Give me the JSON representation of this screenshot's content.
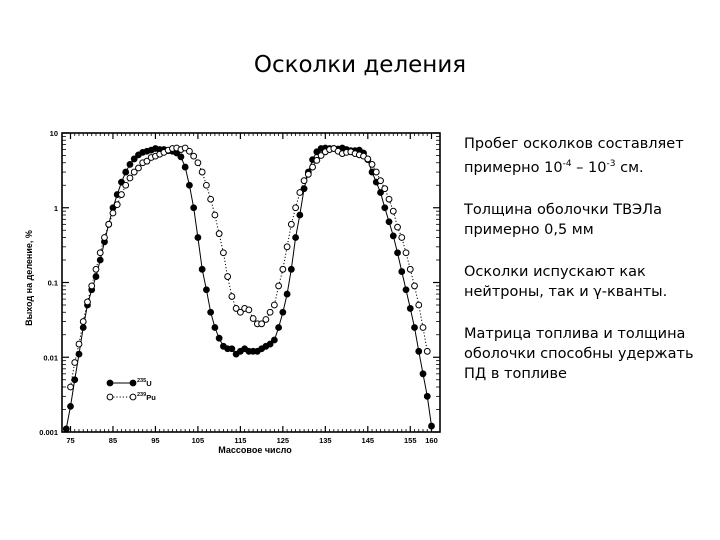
{
  "slide": {
    "title": "Осколки деления",
    "bullets": [
      {
        "parts": [
          {
            "t": "Пробег осколков составляет примерно 10"
          },
          {
            "sup": "-4"
          },
          {
            "t": " – 10"
          },
          {
            "sup": "-3"
          },
          {
            "t": " см."
          }
        ]
      },
      {
        "parts": [
          {
            "t": "Толщина оболочки ТВЭЛа примерно 0,5 мм"
          }
        ]
      },
      {
        "parts": [
          {
            "t": "Осколки испускают как нейтроны, так и γ-кванты."
          }
        ]
      },
      {
        "parts": [
          {
            "t": "Матрица топлива и толщина оболочки способны удержать ПД в топливе"
          }
        ]
      }
    ]
  },
  "chart_data": {
    "type": "scatter",
    "xlabel": "Массовое число",
    "ylabel": "Выход на деление, %",
    "xlim": [
      73,
      162
    ],
    "ylim": [
      0.001,
      10
    ],
    "yscale": "log",
    "x_ticks": [
      75,
      85,
      95,
      105,
      115,
      125,
      135,
      145,
      155,
      160
    ],
    "x_tick_labels": [
      "75",
      "85",
      "95",
      "105",
      "115",
      "125",
      "135",
      "145",
      "155",
      "160"
    ],
    "y_ticks": [
      0.001,
      0.01,
      0.1,
      1,
      10
    ],
    "y_tick_labels": [
      "0.001",
      "0.01",
      "0.1",
      "1",
      "10"
    ],
    "legend_position": "lower-left",
    "series": [
      {
        "name": "235U",
        "legend_sup": "235",
        "legend_base": "U",
        "marker": "filled",
        "line": "solid",
        "points": [
          [
            74,
            0.0011
          ],
          [
            75,
            0.0022
          ],
          [
            76,
            0.005
          ],
          [
            77,
            0.011
          ],
          [
            78,
            0.025
          ],
          [
            79,
            0.05
          ],
          [
            80,
            0.08
          ],
          [
            81,
            0.12
          ],
          [
            82,
            0.2
          ],
          [
            83,
            0.35
          ],
          [
            84,
            0.6
          ],
          [
            85,
            1.0
          ],
          [
            86,
            1.5
          ],
          [
            87,
            2.2
          ],
          [
            88,
            3.0
          ],
          [
            89,
            3.8
          ],
          [
            90,
            4.5
          ],
          [
            91,
            5.1
          ],
          [
            92,
            5.5
          ],
          [
            93,
            5.7
          ],
          [
            94,
            5.9
          ],
          [
            95,
            6.2
          ],
          [
            96,
            6.0
          ],
          [
            97,
            6.0
          ],
          [
            98,
            5.8
          ],
          [
            99,
            5.7
          ],
          [
            100,
            5.4
          ],
          [
            101,
            4.8
          ],
          [
            102,
            3.5
          ],
          [
            103,
            2.0
          ],
          [
            104,
            1.0
          ],
          [
            105,
            0.4
          ],
          [
            106,
            0.15
          ],
          [
            107,
            0.08
          ],
          [
            108,
            0.04
          ],
          [
            109,
            0.025
          ],
          [
            110,
            0.018
          ],
          [
            111,
            0.014
          ],
          [
            112,
            0.013
          ],
          [
            113,
            0.013
          ],
          [
            114,
            0.011
          ],
          [
            115,
            0.012
          ],
          [
            116,
            0.013
          ],
          [
            117,
            0.012
          ],
          [
            118,
            0.012
          ],
          [
            119,
            0.012
          ],
          [
            120,
            0.013
          ],
          [
            121,
            0.014
          ],
          [
            122,
            0.015
          ],
          [
            123,
            0.017
          ],
          [
            124,
            0.025
          ],
          [
            125,
            0.04
          ],
          [
            126,
            0.07
          ],
          [
            127,
            0.15
          ],
          [
            128,
            0.4
          ],
          [
            129,
            0.8
          ],
          [
            130,
            1.8
          ],
          [
            131,
            3.0
          ],
          [
            132,
            4.4
          ],
          [
            133,
            5.6
          ],
          [
            134,
            6.2
          ],
          [
            135,
            6.3
          ],
          [
            136,
            6.2
          ],
          [
            137,
            6.2
          ],
          [
            138,
            6.1
          ],
          [
            139,
            6.3
          ],
          [
            140,
            6.0
          ],
          [
            141,
            5.8
          ],
          [
            142,
            5.8
          ],
          [
            143,
            5.9
          ],
          [
            144,
            5.4
          ],
          [
            145,
            4.4
          ],
          [
            146,
            3.0
          ],
          [
            147,
            2.2
          ],
          [
            148,
            1.6
          ],
          [
            149,
            1.0
          ],
          [
            150,
            0.65
          ],
          [
            151,
            0.42
          ],
          [
            152,
            0.25
          ],
          [
            153,
            0.14
          ],
          [
            154,
            0.08
          ],
          [
            155,
            0.045
          ],
          [
            156,
            0.025
          ],
          [
            157,
            0.012
          ],
          [
            158,
            0.006
          ],
          [
            159,
            0.003
          ],
          [
            160,
            0.0012
          ]
        ]
      },
      {
        "name": "239Pu",
        "legend_sup": "239",
        "legend_base": "Pu",
        "marker": "open",
        "line": "dotted",
        "points": [
          [
            75,
            0.004
          ],
          [
            76,
            0.0085
          ],
          [
            77,
            0.015
          ],
          [
            78,
            0.03
          ],
          [
            79,
            0.055
          ],
          [
            80,
            0.09
          ],
          [
            81,
            0.15
          ],
          [
            82,
            0.25
          ],
          [
            83,
            0.4
          ],
          [
            84,
            0.6
          ],
          [
            85,
            0.85
          ],
          [
            86,
            1.1
          ],
          [
            87,
            1.5
          ],
          [
            88,
            2.0
          ],
          [
            89,
            2.5
          ],
          [
            90,
            3.0
          ],
          [
            91,
            3.4
          ],
          [
            92,
            4.0
          ],
          [
            93,
            4.2
          ],
          [
            94,
            4.7
          ],
          [
            95,
            4.9
          ],
          [
            96,
            5.2
          ],
          [
            97,
            5.5
          ],
          [
            98,
            5.9
          ],
          [
            99,
            6.2
          ],
          [
            100,
            6.3
          ],
          [
            101,
            6.0
          ],
          [
            102,
            6.3
          ],
          [
            103,
            5.7
          ],
          [
            104,
            4.9
          ],
          [
            105,
            4.0
          ],
          [
            106,
            3.0
          ],
          [
            107,
            2.0
          ],
          [
            108,
            1.3
          ],
          [
            109,
            0.8
          ],
          [
            110,
            0.45
          ],
          [
            111,
            0.25
          ],
          [
            112,
            0.12
          ],
          [
            113,
            0.065
          ],
          [
            114,
            0.045
          ],
          [
            115,
            0.04
          ],
          [
            116,
            0.045
          ],
          [
            117,
            0.043
          ],
          [
            118,
            0.033
          ],
          [
            119,
            0.028
          ],
          [
            120,
            0.028
          ],
          [
            121,
            0.032
          ],
          [
            122,
            0.04
          ],
          [
            123,
            0.05
          ],
          [
            124,
            0.09
          ],
          [
            125,
            0.15
          ],
          [
            126,
            0.3
          ],
          [
            127,
            0.6
          ],
          [
            128,
            1.0
          ],
          [
            129,
            1.6
          ],
          [
            130,
            2.3
          ],
          [
            131,
            2.8
          ],
          [
            132,
            3.5
          ],
          [
            133,
            4.3
          ],
          [
            134,
            5.0
          ],
          [
            135,
            5.6
          ],
          [
            136,
            6.0
          ],
          [
            137,
            6.2
          ],
          [
            138,
            5.7
          ],
          [
            139,
            5.3
          ],
          [
            140,
            5.5
          ],
          [
            141,
            5.6
          ],
          [
            142,
            5.3
          ],
          [
            143,
            5.1
          ],
          [
            144,
            4.9
          ],
          [
            145,
            4.5
          ],
          [
            146,
            3.8
          ],
          [
            147,
            3.0
          ],
          [
            148,
            2.3
          ],
          [
            149,
            1.8
          ],
          [
            150,
            1.3
          ],
          [
            151,
            0.9
          ],
          [
            152,
            0.55
          ],
          [
            153,
            0.4
          ],
          [
            154,
            0.25
          ],
          [
            155,
            0.15
          ],
          [
            156,
            0.09
          ],
          [
            157,
            0.05
          ],
          [
            158,
            0.025
          ],
          [
            159,
            0.012
          ]
        ]
      }
    ]
  }
}
